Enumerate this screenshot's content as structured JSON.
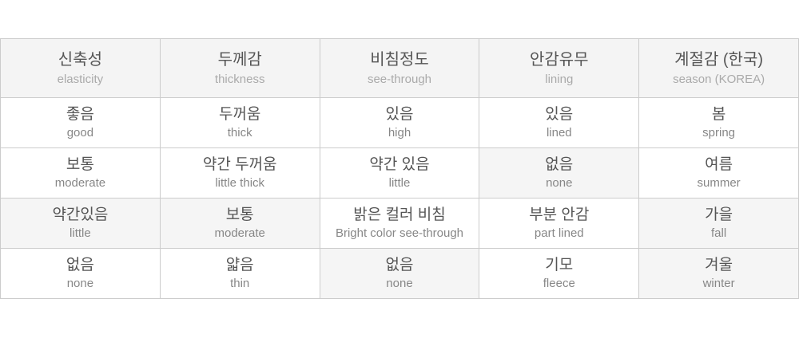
{
  "table": {
    "header": [
      {
        "ko": "신축성",
        "en": "elasticity"
      },
      {
        "ko": "두께감",
        "en": "thickness"
      },
      {
        "ko": "비침정도",
        "en": "see-through"
      },
      {
        "ko": "안감유무",
        "en": "lining"
      },
      {
        "ko": "계절감 (한국)",
        "en": "season (KOREA)"
      }
    ],
    "rows": [
      [
        {
          "ko": "좋음",
          "en": "good",
          "hl": false
        },
        {
          "ko": "두꺼움",
          "en": "thick",
          "hl": false
        },
        {
          "ko": "있음",
          "en": "high",
          "hl": false
        },
        {
          "ko": "있음",
          "en": "lined",
          "hl": false
        },
        {
          "ko": "봄",
          "en": "spring",
          "hl": false
        }
      ],
      [
        {
          "ko": "보통",
          "en": "moderate",
          "hl": false
        },
        {
          "ko": "약간 두꺼움",
          "en": "little thick",
          "hl": false
        },
        {
          "ko": "약간 있음",
          "en": "little",
          "hl": false
        },
        {
          "ko": "없음",
          "en": "none",
          "hl": true
        },
        {
          "ko": "여름",
          "en": "summer",
          "hl": false
        }
      ],
      [
        {
          "ko": "약간있음",
          "en": "little",
          "hl": true
        },
        {
          "ko": "보통",
          "en": "moderate",
          "hl": true
        },
        {
          "ko": "밝은 컬러 비침",
          "en": "Bright color see-through",
          "hl": false
        },
        {
          "ko": "부분 안감",
          "en": "part lined",
          "hl": false
        },
        {
          "ko": "가을",
          "en": "fall",
          "hl": true
        }
      ],
      [
        {
          "ko": "없음",
          "en": "none",
          "hl": false
        },
        {
          "ko": "얇음",
          "en": "thin",
          "hl": false
        },
        {
          "ko": "없음",
          "en": "none",
          "hl": true
        },
        {
          "ko": "기모",
          "en": "fleece",
          "hl": false
        },
        {
          "ko": "겨울",
          "en": "winter",
          "hl": true
        }
      ]
    ]
  },
  "colors": {
    "header_bg": "#f4f4f4",
    "highlight_bg": "#f5f5f5",
    "border": "#cccccc",
    "korean_text": "#555555",
    "english_header_text": "#aaaaaa",
    "english_body_text": "#878787"
  }
}
